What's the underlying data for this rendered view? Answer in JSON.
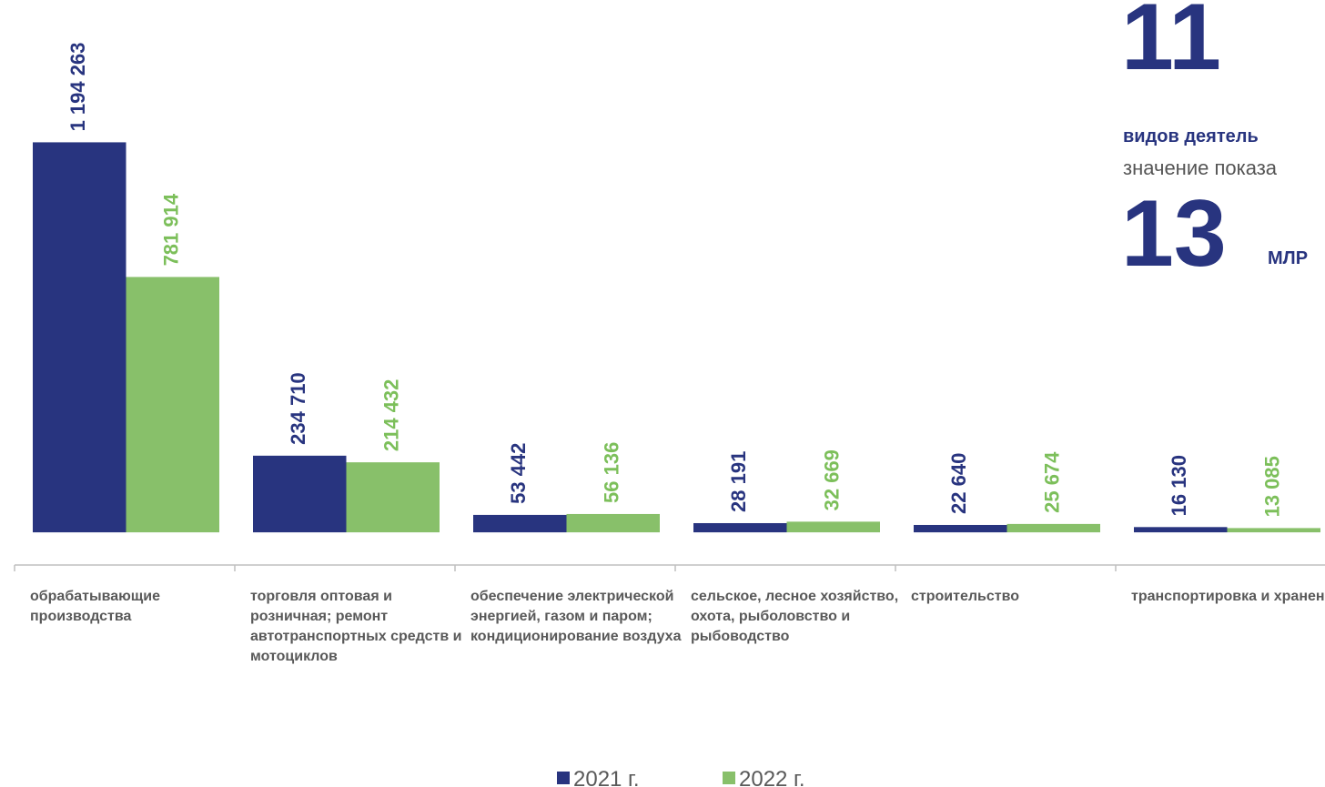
{
  "chart_data": {
    "type": "bar",
    "categories": [
      "обрабатывающие производства",
      "торговля оптовая и розничная; ремонт автотранспортных средств и мотоциклов",
      "обеспечение электрической энергией, газом и паром; кондиционирование воздуха",
      "сельское, лесное хозяйство, охота, рыболовство и рыбоводство",
      "строительство",
      "транспортировка и хранение"
    ],
    "series": [
      {
        "name": "2021 г.",
        "color": "#28347f",
        "values": [
          1194263,
          234710,
          53442,
          28191,
          22640,
          16130
        ],
        "value_labels": [
          "1 194 263",
          "234 710",
          "53 442",
          "28 191",
          "22 640",
          "16 130"
        ]
      },
      {
        "name": "2022 г.",
        "color": "#88c06a",
        "values": [
          781914,
          214432,
          56136,
          32669,
          25674,
          13085
        ],
        "value_labels": [
          "781 914",
          "214 432",
          "56 136",
          "32 669",
          "25 674",
          "13 085"
        ]
      }
    ],
    "ylim": [
      -100000,
      1630000
    ],
    "annotations": [
      "11",
      "видов деятель",
      "значение показа",
      "13",
      "МЛР"
    ]
  }
}
